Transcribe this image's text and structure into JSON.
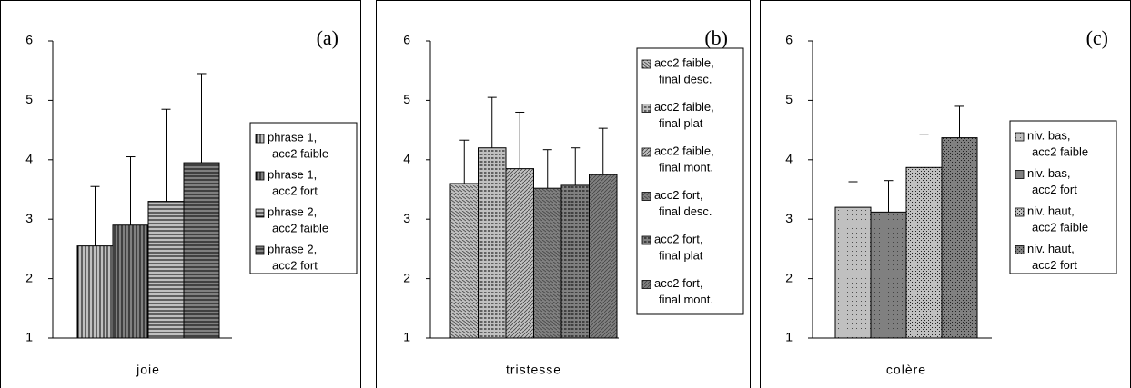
{
  "chart_data": [
    {
      "type": "bar",
      "panel_label": "(a)",
      "categories": [
        "joie"
      ],
      "ylim": [
        1,
        6
      ],
      "yticks": [
        1,
        2,
        3,
        4,
        5,
        6
      ],
      "series": [
        {
          "name": [
            "phrase 1,",
            "acc2 faible"
          ],
          "color": "#c0c0c0",
          "hatch": "vertical",
          "values": [
            2.55
          ],
          "errors": [
            1.0
          ]
        },
        {
          "name": [
            "phrase 1,",
            "acc2 fort"
          ],
          "color": "#808080",
          "hatch": "vertical",
          "values": [
            2.9
          ],
          "errors": [
            1.15
          ]
        },
        {
          "name": [
            "phrase 2,",
            "acc2 faible"
          ],
          "color": "#c0c0c0",
          "hatch": "horizontal",
          "values": [
            3.3
          ],
          "errors": [
            1.55
          ]
        },
        {
          "name": [
            "phrase 2,",
            "acc2 fort"
          ],
          "color": "#808080",
          "hatch": "horizontal",
          "values": [
            3.95
          ],
          "errors": [
            1.5
          ]
        }
      ]
    },
    {
      "type": "bar",
      "panel_label": "(b)",
      "categories": [
        "tristesse"
      ],
      "ylim": [
        1,
        6
      ],
      "yticks": [
        1,
        2,
        3,
        4,
        5,
        6
      ],
      "series": [
        {
          "name": [
            "acc2 faible,",
            "final desc."
          ],
          "color": "#c0c0c0",
          "hatch": "diag-down",
          "values": [
            3.6
          ],
          "errors": [
            0.73
          ]
        },
        {
          "name": [
            "acc2 faible,",
            "final plat"
          ],
          "color": "#c0c0c0",
          "hatch": "dash",
          "values": [
            4.2
          ],
          "errors": [
            0.85
          ]
        },
        {
          "name": [
            "acc2 faible,",
            "final mont."
          ],
          "color": "#c0c0c0",
          "hatch": "diag-up",
          "values": [
            3.85
          ],
          "errors": [
            0.95
          ]
        },
        {
          "name": [
            "acc2 fort,",
            "final desc."
          ],
          "color": "#808080",
          "hatch": "diag-down",
          "values": [
            3.52
          ],
          "errors": [
            0.65
          ]
        },
        {
          "name": [
            "acc2 fort,",
            "final plat"
          ],
          "color": "#808080",
          "hatch": "dash",
          "values": [
            3.57
          ],
          "errors": [
            0.63
          ]
        },
        {
          "name": [
            "acc2 fort,",
            "final mont."
          ],
          "color": "#808080",
          "hatch": "diag-up",
          "values": [
            3.75
          ],
          "errors": [
            0.78
          ]
        }
      ]
    },
    {
      "type": "bar",
      "panel_label": "(c)",
      "categories": [
        "colère"
      ],
      "ylim": [
        1,
        6
      ],
      "yticks": [
        1,
        2,
        3,
        4,
        5,
        6
      ],
      "series": [
        {
          "name": [
            "niv. bas,",
            "acc2 faible"
          ],
          "color": "#c0c0c0",
          "hatch": "dots",
          "values": [
            3.2
          ],
          "errors": [
            0.43
          ]
        },
        {
          "name": [
            "niv. bas,",
            "acc2 fort"
          ],
          "color": "#808080",
          "hatch": "dots",
          "values": [
            3.12
          ],
          "errors": [
            0.53
          ]
        },
        {
          "name": [
            "niv. haut,",
            "acc2 faible"
          ],
          "color": "#c0c0c0",
          "hatch": "dense-dots",
          "values": [
            3.87
          ],
          "errors": [
            0.56
          ]
        },
        {
          "name": [
            "niv. haut,",
            "acc2 fort"
          ],
          "color": "#808080",
          "hatch": "dense-dots",
          "values": [
            4.37
          ],
          "errors": [
            0.53
          ]
        }
      ]
    }
  ]
}
